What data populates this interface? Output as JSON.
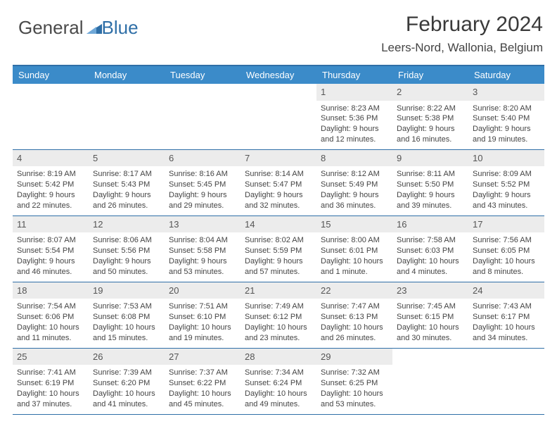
{
  "brand": {
    "part1": "General",
    "part2": "Blue"
  },
  "title": "February 2024",
  "location": "Leers-Nord, Wallonia, Belgium",
  "colors": {
    "header_bg": "#3b8bc9",
    "border": "#2f6fa7",
    "daynum_bg": "#ececec",
    "text": "#444444"
  },
  "day_names": [
    "Sunday",
    "Monday",
    "Tuesday",
    "Wednesday",
    "Thursday",
    "Friday",
    "Saturday"
  ],
  "weeks": [
    [
      {
        "n": "",
        "sr": "",
        "ss": "",
        "dl1": "",
        "dl2": ""
      },
      {
        "n": "",
        "sr": "",
        "ss": "",
        "dl1": "",
        "dl2": ""
      },
      {
        "n": "",
        "sr": "",
        "ss": "",
        "dl1": "",
        "dl2": ""
      },
      {
        "n": "",
        "sr": "",
        "ss": "",
        "dl1": "",
        "dl2": ""
      },
      {
        "n": "1",
        "sr": "Sunrise: 8:23 AM",
        "ss": "Sunset: 5:36 PM",
        "dl1": "Daylight: 9 hours",
        "dl2": "and 12 minutes."
      },
      {
        "n": "2",
        "sr": "Sunrise: 8:22 AM",
        "ss": "Sunset: 5:38 PM",
        "dl1": "Daylight: 9 hours",
        "dl2": "and 16 minutes."
      },
      {
        "n": "3",
        "sr": "Sunrise: 8:20 AM",
        "ss": "Sunset: 5:40 PM",
        "dl1": "Daylight: 9 hours",
        "dl2": "and 19 minutes."
      }
    ],
    [
      {
        "n": "4",
        "sr": "Sunrise: 8:19 AM",
        "ss": "Sunset: 5:42 PM",
        "dl1": "Daylight: 9 hours",
        "dl2": "and 22 minutes."
      },
      {
        "n": "5",
        "sr": "Sunrise: 8:17 AM",
        "ss": "Sunset: 5:43 PM",
        "dl1": "Daylight: 9 hours",
        "dl2": "and 26 minutes."
      },
      {
        "n": "6",
        "sr": "Sunrise: 8:16 AM",
        "ss": "Sunset: 5:45 PM",
        "dl1": "Daylight: 9 hours",
        "dl2": "and 29 minutes."
      },
      {
        "n": "7",
        "sr": "Sunrise: 8:14 AM",
        "ss": "Sunset: 5:47 PM",
        "dl1": "Daylight: 9 hours",
        "dl2": "and 32 minutes."
      },
      {
        "n": "8",
        "sr": "Sunrise: 8:12 AM",
        "ss": "Sunset: 5:49 PM",
        "dl1": "Daylight: 9 hours",
        "dl2": "and 36 minutes."
      },
      {
        "n": "9",
        "sr": "Sunrise: 8:11 AM",
        "ss": "Sunset: 5:50 PM",
        "dl1": "Daylight: 9 hours",
        "dl2": "and 39 minutes."
      },
      {
        "n": "10",
        "sr": "Sunrise: 8:09 AM",
        "ss": "Sunset: 5:52 PM",
        "dl1": "Daylight: 9 hours",
        "dl2": "and 43 minutes."
      }
    ],
    [
      {
        "n": "11",
        "sr": "Sunrise: 8:07 AM",
        "ss": "Sunset: 5:54 PM",
        "dl1": "Daylight: 9 hours",
        "dl2": "and 46 minutes."
      },
      {
        "n": "12",
        "sr": "Sunrise: 8:06 AM",
        "ss": "Sunset: 5:56 PM",
        "dl1": "Daylight: 9 hours",
        "dl2": "and 50 minutes."
      },
      {
        "n": "13",
        "sr": "Sunrise: 8:04 AM",
        "ss": "Sunset: 5:58 PM",
        "dl1": "Daylight: 9 hours",
        "dl2": "and 53 minutes."
      },
      {
        "n": "14",
        "sr": "Sunrise: 8:02 AM",
        "ss": "Sunset: 5:59 PM",
        "dl1": "Daylight: 9 hours",
        "dl2": "and 57 minutes."
      },
      {
        "n": "15",
        "sr": "Sunrise: 8:00 AM",
        "ss": "Sunset: 6:01 PM",
        "dl1": "Daylight: 10 hours",
        "dl2": "and 1 minute."
      },
      {
        "n": "16",
        "sr": "Sunrise: 7:58 AM",
        "ss": "Sunset: 6:03 PM",
        "dl1": "Daylight: 10 hours",
        "dl2": "and 4 minutes."
      },
      {
        "n": "17",
        "sr": "Sunrise: 7:56 AM",
        "ss": "Sunset: 6:05 PM",
        "dl1": "Daylight: 10 hours",
        "dl2": "and 8 minutes."
      }
    ],
    [
      {
        "n": "18",
        "sr": "Sunrise: 7:54 AM",
        "ss": "Sunset: 6:06 PM",
        "dl1": "Daylight: 10 hours",
        "dl2": "and 11 minutes."
      },
      {
        "n": "19",
        "sr": "Sunrise: 7:53 AM",
        "ss": "Sunset: 6:08 PM",
        "dl1": "Daylight: 10 hours",
        "dl2": "and 15 minutes."
      },
      {
        "n": "20",
        "sr": "Sunrise: 7:51 AM",
        "ss": "Sunset: 6:10 PM",
        "dl1": "Daylight: 10 hours",
        "dl2": "and 19 minutes."
      },
      {
        "n": "21",
        "sr": "Sunrise: 7:49 AM",
        "ss": "Sunset: 6:12 PM",
        "dl1": "Daylight: 10 hours",
        "dl2": "and 23 minutes."
      },
      {
        "n": "22",
        "sr": "Sunrise: 7:47 AM",
        "ss": "Sunset: 6:13 PM",
        "dl1": "Daylight: 10 hours",
        "dl2": "and 26 minutes."
      },
      {
        "n": "23",
        "sr": "Sunrise: 7:45 AM",
        "ss": "Sunset: 6:15 PM",
        "dl1": "Daylight: 10 hours",
        "dl2": "and 30 minutes."
      },
      {
        "n": "24",
        "sr": "Sunrise: 7:43 AM",
        "ss": "Sunset: 6:17 PM",
        "dl1": "Daylight: 10 hours",
        "dl2": "and 34 minutes."
      }
    ],
    [
      {
        "n": "25",
        "sr": "Sunrise: 7:41 AM",
        "ss": "Sunset: 6:19 PM",
        "dl1": "Daylight: 10 hours",
        "dl2": "and 37 minutes."
      },
      {
        "n": "26",
        "sr": "Sunrise: 7:39 AM",
        "ss": "Sunset: 6:20 PM",
        "dl1": "Daylight: 10 hours",
        "dl2": "and 41 minutes."
      },
      {
        "n": "27",
        "sr": "Sunrise: 7:37 AM",
        "ss": "Sunset: 6:22 PM",
        "dl1": "Daylight: 10 hours",
        "dl2": "and 45 minutes."
      },
      {
        "n": "28",
        "sr": "Sunrise: 7:34 AM",
        "ss": "Sunset: 6:24 PM",
        "dl1": "Daylight: 10 hours",
        "dl2": "and 49 minutes."
      },
      {
        "n": "29",
        "sr": "Sunrise: 7:32 AM",
        "ss": "Sunset: 6:25 PM",
        "dl1": "Daylight: 10 hours",
        "dl2": "and 53 minutes."
      },
      {
        "n": "",
        "sr": "",
        "ss": "",
        "dl1": "",
        "dl2": ""
      },
      {
        "n": "",
        "sr": "",
        "ss": "",
        "dl1": "",
        "dl2": ""
      }
    ]
  ]
}
